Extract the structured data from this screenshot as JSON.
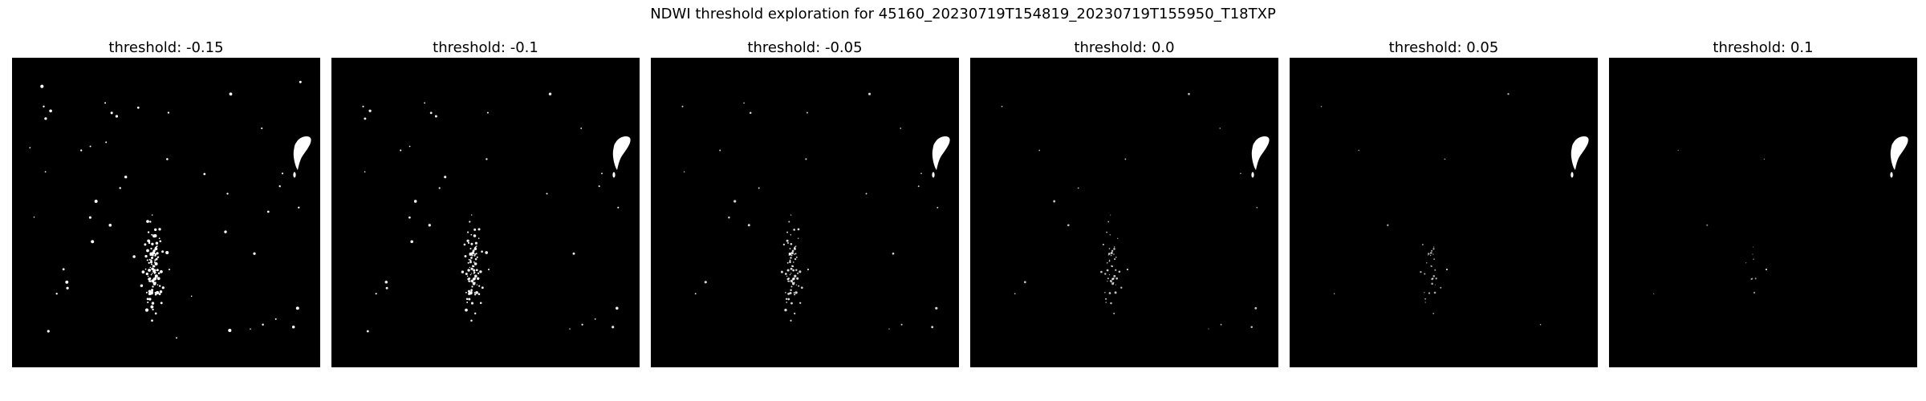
{
  "chart_data": {
    "type": "heatmap",
    "title": "NDWI threshold exploration for 45160_20230719T154819_20230719T155950_T18TXP",
    "panels": [
      {
        "title": "threshold: -0.15",
        "threshold": -0.15
      },
      {
        "title": "threshold: -0.1",
        "threshold": -0.1
      },
      {
        "title": "threshold: -0.05",
        "threshold": -0.05
      },
      {
        "title": "threshold: 0.0",
        "threshold": 0.0
      },
      {
        "title": "threshold: 0.05",
        "threshold": 0.05
      },
      {
        "title": "threshold: 0.1",
        "threshold": 0.1
      }
    ],
    "colormap": [
      "#000000",
      "#ffffff"
    ],
    "axes_visible": false
  }
}
